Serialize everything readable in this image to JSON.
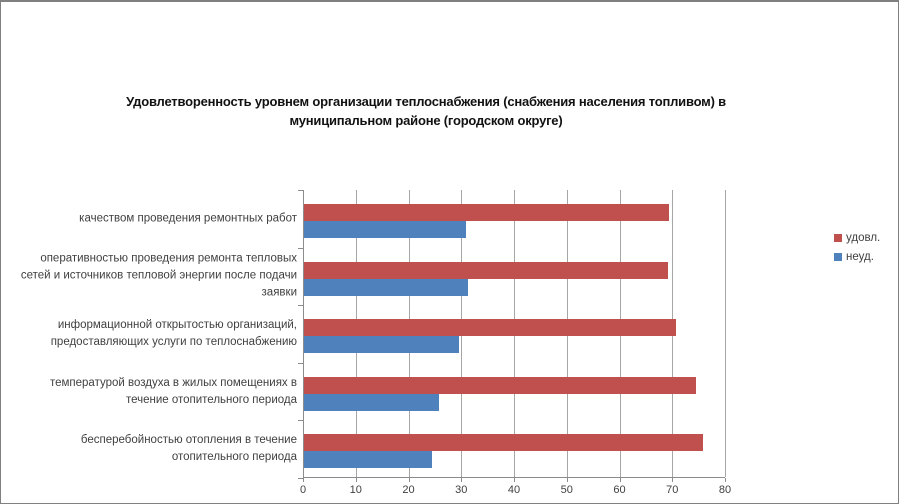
{
  "chart_data": {
    "type": "bar",
    "orientation": "horizontal",
    "title": "Удовлетворенность уровнем организации  теплоснабжения (снабжения населения топливом) в муниципальном районе (городском округе)",
    "categories": [
      "качеством проведения  ремонтных работ",
      "оперативностью проведения  ремонта тепловых сетей и источников тепловой энергии после подачи заявки",
      "информационной открытостью организаций, предоставляющих услуги по теплоснабжению",
      "температурой воздуха в жилых помещениях  в течение  отопительного периода",
      "бесперебойностью  отопления в течение отопительного периода"
    ],
    "series": [
      {
        "name": "удовл.",
        "color": "#C0504D",
        "values": [
          69.2,
          69.0,
          70.6,
          74.4,
          75.7
        ]
      },
      {
        "name": "неуд.",
        "color": "#4F81BD",
        "values": [
          30.8,
          31.0,
          29.4,
          25.6,
          24.3
        ]
      }
    ],
    "x_axis": {
      "min": 0,
      "max": 80,
      "tick_interval": 10,
      "tick_labels": [
        "0",
        "10",
        "20",
        "30",
        "40",
        "50",
        "60",
        "70",
        "80"
      ]
    },
    "legend": {
      "position": "right",
      "entries": [
        "удовл.",
        "неуд."
      ]
    },
    "grid": true,
    "colors": {
      "gridline": "#A6A6A6",
      "axis": "#8C8C8C",
      "label": "#404040",
      "frame_border": "#808080",
      "background": "#FFFFFF"
    }
  }
}
